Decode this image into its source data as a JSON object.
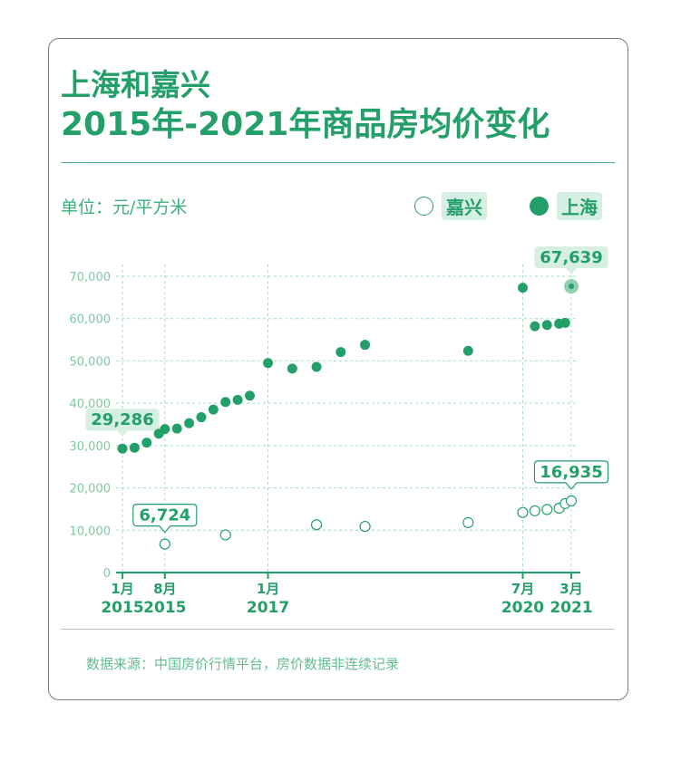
{
  "title": {
    "line1": "上海和嘉兴",
    "line2": "2015年-2021年商品房均价变化"
  },
  "unit": "单位：元/平方米",
  "legend": [
    {
      "name": "嘉兴",
      "style": "hollow"
    },
    {
      "name": "上海",
      "style": "solid"
    }
  ],
  "source": "数据来源：中国房价行情平台，房价数据非连续记录",
  "colors": {
    "accent": "#23a06a",
    "grid": "#a8dcc1",
    "label_bg": "#d6efe2"
  },
  "chart_data": {
    "type": "scatter",
    "ylim": [
      0,
      70000
    ],
    "yticks": [
      0,
      10000,
      20000,
      30000,
      40000,
      50000,
      60000,
      70000
    ],
    "ytick_labels": [
      "0",
      "10,000",
      "20,000",
      "30,000",
      "40,000",
      "50,000",
      "60,000",
      "70,000"
    ],
    "xticks": [
      {
        "month": "1月",
        "year": "2015",
        "date": "2015-01"
      },
      {
        "month": "8月",
        "year": "2015",
        "date": "2015-08"
      },
      {
        "month": "1月",
        "year": "2017",
        "date": "2017-01"
      },
      {
        "month": "7月",
        "year": "2020",
        "date": "2020-07"
      },
      {
        "month": "3月",
        "year": "2021",
        "date": "2021-03"
      }
    ],
    "series": [
      {
        "name": "上海",
        "style": "solid",
        "points": [
          {
            "x": "2015-01",
            "y": 29286,
            "label": "29,286"
          },
          {
            "x": "2015-03",
            "y": 29500
          },
          {
            "x": "2015-05",
            "y": 30700
          },
          {
            "x": "2015-07",
            "y": 32800
          },
          {
            "x": "2015-08",
            "y": 33900
          },
          {
            "x": "2015-10",
            "y": 34000
          },
          {
            "x": "2015-12",
            "y": 35300
          },
          {
            "x": "2016-02",
            "y": 36700
          },
          {
            "x": "2016-04",
            "y": 38500
          },
          {
            "x": "2016-06",
            "y": 40300
          },
          {
            "x": "2016-08",
            "y": 40800
          },
          {
            "x": "2016-10",
            "y": 41800
          },
          {
            "x": "2017-01",
            "y": 49500
          },
          {
            "x": "2017-05",
            "y": 48200
          },
          {
            "x": "2017-09",
            "y": 48600
          },
          {
            "x": "2018-01",
            "y": 52100
          },
          {
            "x": "2018-05",
            "y": 53800
          },
          {
            "x": "2019-10",
            "y": 52400
          },
          {
            "x": "2020-07",
            "y": 67300
          },
          {
            "x": "2020-09",
            "y": 58200
          },
          {
            "x": "2020-11",
            "y": 58500
          },
          {
            "x": "2021-01",
            "y": 58800
          },
          {
            "x": "2021-02",
            "y": 59000
          },
          {
            "x": "2021-03",
            "y": 67639,
            "label": "67,639"
          }
        ]
      },
      {
        "name": "嘉兴",
        "style": "hollow",
        "points": [
          {
            "x": "2015-08",
            "y": 6724,
            "label": "6,724"
          },
          {
            "x": "2016-06",
            "y": 8900
          },
          {
            "x": "2017-09",
            "y": 11300
          },
          {
            "x": "2018-05",
            "y": 10900
          },
          {
            "x": "2019-10",
            "y": 11800
          },
          {
            "x": "2020-07",
            "y": 14200
          },
          {
            "x": "2020-09",
            "y": 14600
          },
          {
            "x": "2020-11",
            "y": 14900
          },
          {
            "x": "2021-01",
            "y": 15200
          },
          {
            "x": "2021-02",
            "y": 16300
          },
          {
            "x": "2021-03",
            "y": 16935,
            "label": "16,935"
          }
        ]
      }
    ]
  }
}
